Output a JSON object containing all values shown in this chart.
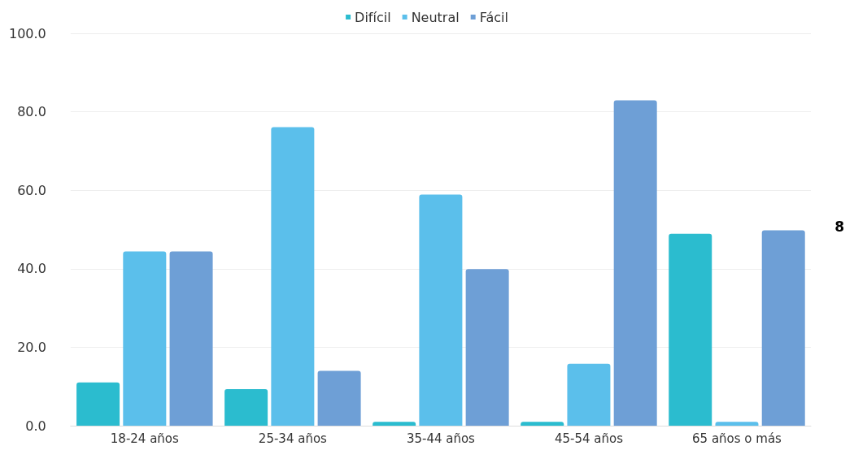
{
  "chart_data": {
    "type": "bar",
    "categories": [
      "18-24 años",
      "25-34 años",
      "35-44 años",
      "45-54 años",
      "65 años o más"
    ],
    "series": [
      {
        "name": "Difícil",
        "color": "#2bbccf",
        "values": [
          11,
          9.3,
          1,
          1,
          48.9
        ]
      },
      {
        "name": "Neutral",
        "color": "#5bbfeb",
        "values": [
          44.4,
          76.1,
          58.9,
          15.8,
          1
        ]
      },
      {
        "name": "Fácil",
        "color": "#6e9fd6",
        "values": [
          44.4,
          14,
          39.9,
          82.9,
          49.8
        ]
      }
    ],
    "ylim": [
      0,
      100
    ],
    "yticks": [
      {
        "value": 0,
        "label": "0.0"
      },
      {
        "value": 20,
        "label": "20.0"
      },
      {
        "value": 40,
        "label": "40.0"
      },
      {
        "value": 60,
        "label": "60.0"
      },
      {
        "value": 80,
        "label": "80.0"
      },
      {
        "value": 100,
        "label": "100.0"
      }
    ],
    "grid": "y",
    "legend": "top",
    "annotations": [
      "8"
    ]
  }
}
